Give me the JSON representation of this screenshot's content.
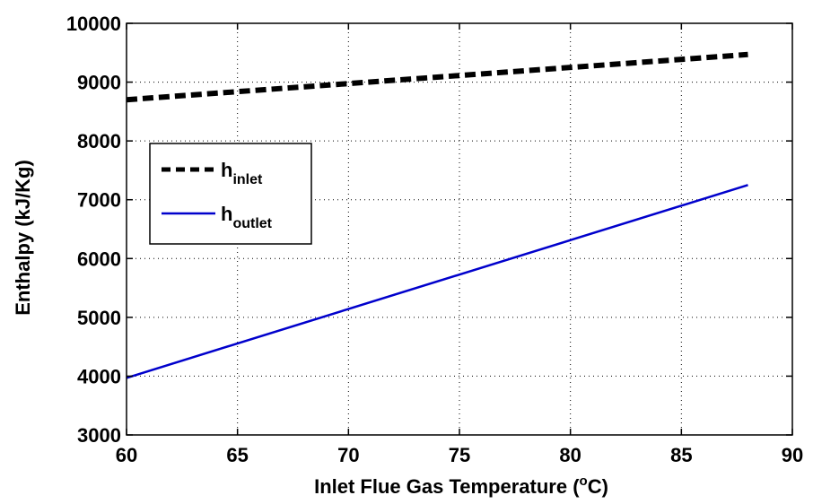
{
  "chart_data": {
    "type": "line",
    "xlabel": {
      "prefix": "Inlet Flue Gas Temperature (",
      "sup": "o",
      "suffix": "C)"
    },
    "ylabel": "Enthalpy (kJ/Kg)",
    "xlim": [
      60,
      90
    ],
    "ylim": [
      3000,
      10000
    ],
    "xticks": [
      60,
      65,
      70,
      75,
      80,
      85,
      90
    ],
    "yticks": [
      3000,
      4000,
      5000,
      6000,
      7000,
      8000,
      9000,
      10000
    ],
    "grid": true,
    "legend_position": "upper-left",
    "series": [
      {
        "name": "h_inlet",
        "label_main": "h",
        "label_sub": "inlet",
        "style": "dashed",
        "color": "#000000",
        "x": [
          60,
          88
        ],
        "y": [
          8700,
          9470
        ]
      },
      {
        "name": "h_outlet",
        "label_main": "h",
        "label_sub": "outlet",
        "style": "solid",
        "color": "#0000cc",
        "x": [
          60,
          88
        ],
        "y": [
          3970,
          7250
        ]
      }
    ]
  }
}
